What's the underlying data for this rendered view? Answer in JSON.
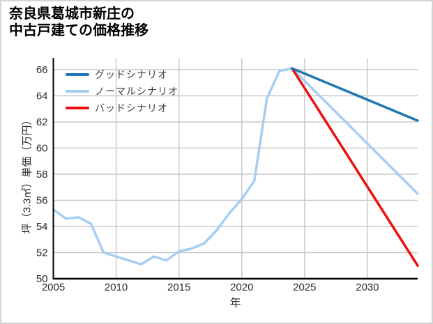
{
  "title": {
    "line1": "奈良県葛城市新庄の",
    "line2": "中古戸建ての価格推移"
  },
  "legend": {
    "entries": [
      {
        "label": "グッドシナリオ",
        "color": "#1f77b4"
      },
      {
        "label": "ノーマルシナリオ",
        "color": "#a6cdf2"
      },
      {
        "label": "バッドシナリオ",
        "color": "#ec0f10"
      }
    ]
  },
  "chart_data": {
    "type": "line",
    "title": "奈良県葛城市新庄の中古戸建ての価格推移",
    "xlabel": "年",
    "ylabel": "坪（3.3㎡）単価（万円）",
    "xlim": [
      2005,
      2034
    ],
    "ylim": [
      50,
      66.85
    ],
    "xticks": [
      2005,
      2010,
      2015,
      2020,
      2025,
      2030
    ],
    "yticks": [
      50,
      52,
      54,
      56,
      58,
      60,
      62,
      64,
      66
    ],
    "grid": true,
    "legend_position": "upper-left",
    "style": {
      "grid_color": "#c9c9c9",
      "spine_color": "#000000",
      "tick_color": "#2b2b2b"
    },
    "series": [
      {
        "id": "normal-scenario",
        "name": "ノーマルシナリオ",
        "color": "#a6cdf2",
        "x": [
          2005,
          2006,
          2007,
          2008,
          2009,
          2010,
          2011,
          2012,
          2013,
          2014,
          2015,
          2016,
          2017,
          2018,
          2019,
          2020,
          2021,
          2022,
          2023,
          2024,
          2034
        ],
        "y": [
          55.3,
          54.6,
          54.7,
          54.2,
          52.0,
          51.7,
          51.4,
          51.1,
          51.7,
          51.4,
          52.1,
          52.3,
          52.7,
          53.7,
          55.0,
          56.1,
          57.5,
          63.8,
          65.9,
          66.1,
          56.5
        ]
      },
      {
        "id": "bad-scenario",
        "name": "バッドシナリオ",
        "color": "#ec0f10",
        "x": [
          2024,
          2034
        ],
        "y": [
          66.1,
          51.0
        ]
      },
      {
        "id": "good-scenario",
        "name": "グッドシナリオ",
        "color": "#1f77b4",
        "x": [
          2024,
          2034
        ],
        "y": [
          66.1,
          62.1
        ]
      }
    ]
  }
}
